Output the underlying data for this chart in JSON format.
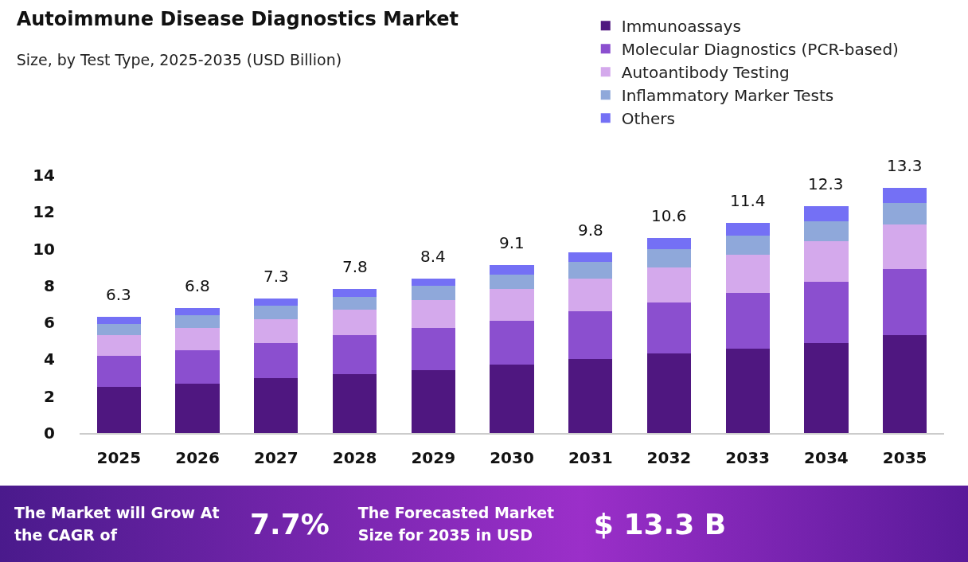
{
  "chart_data": {
    "type": "bar",
    "stacked": true,
    "title": "Autoimmune Disease Diagnostics Market",
    "subtitle": "Size, by Test Type, 2025-2035 (USD Billion)",
    "categories": [
      "2025",
      "2026",
      "2027",
      "2028",
      "2029",
      "2030",
      "2031",
      "2032",
      "2033",
      "2034",
      "2035"
    ],
    "series": [
      {
        "name": "Immunoassays",
        "color": "#4f1780",
        "values": [
          2.5,
          2.7,
          3.0,
          3.2,
          3.4,
          3.7,
          4.0,
          4.3,
          4.6,
          4.9,
          5.3
        ]
      },
      {
        "name": "Molecular Diagnostics (PCR-based)",
        "color": "#8b4fcf",
        "values": [
          1.7,
          1.8,
          1.9,
          2.1,
          2.3,
          2.4,
          2.6,
          2.8,
          3.0,
          3.3,
          3.6
        ]
      },
      {
        "name": "Autoantibody Testing",
        "color": "#d4a9ec",
        "values": [
          1.1,
          1.2,
          1.3,
          1.4,
          1.5,
          1.7,
          1.8,
          1.9,
          2.1,
          2.2,
          2.4
        ]
      },
      {
        "name": "Inflammatory Marker Tests",
        "color": "#8fa8da",
        "values": [
          0.6,
          0.7,
          0.7,
          0.7,
          0.8,
          0.8,
          0.9,
          1.0,
          1.0,
          1.1,
          1.2
        ]
      },
      {
        "name": "Others",
        "color": "#7470f5",
        "values": [
          0.4,
          0.4,
          0.4,
          0.4,
          0.4,
          0.5,
          0.5,
          0.6,
          0.7,
          0.8,
          0.8
        ]
      }
    ],
    "totals": [
      "6.3",
      "6.8",
      "7.3",
      "7.8",
      "8.4",
      "9.1",
      "9.8",
      "10.6",
      "11.4",
      "12.3",
      "13.3"
    ],
    "ylim": [
      0,
      14
    ],
    "yticks": [
      0,
      2,
      4,
      6,
      8,
      10,
      12,
      14
    ],
    "grid": false,
    "legend": "top right",
    "annotations": [
      "The Market will Grow At the CAGR of",
      "7.7%",
      "The Forecasted Market Size for 2035 in USD",
      "$ 13.3 B"
    ]
  }
}
